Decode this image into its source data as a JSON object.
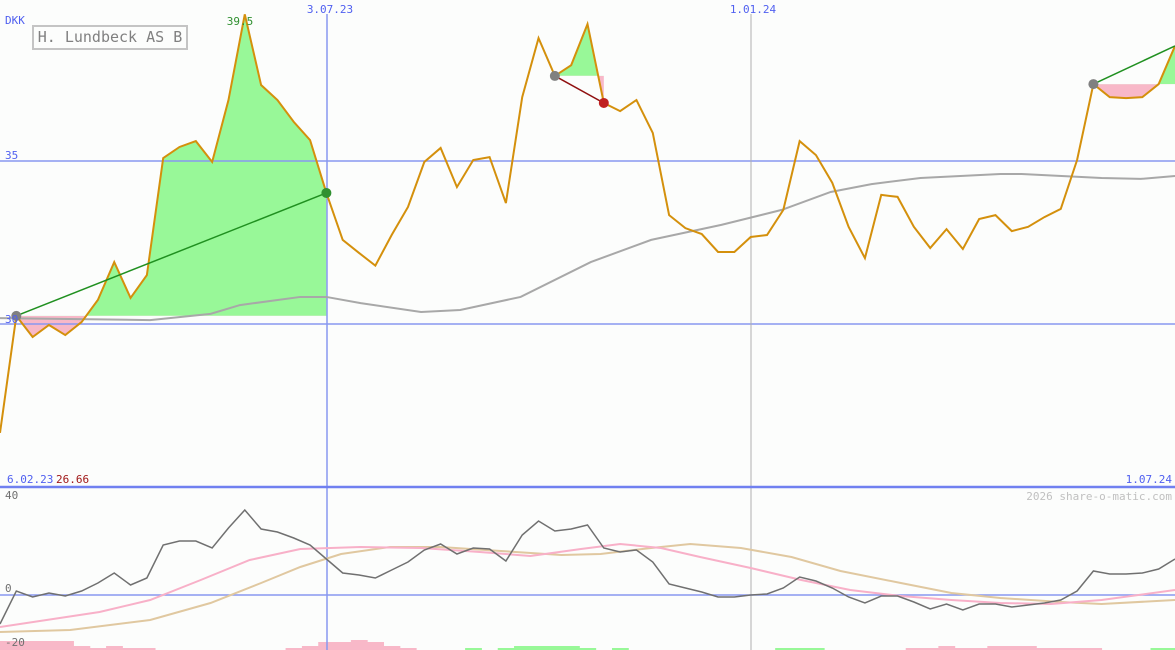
{
  "title": "H. Lundbeck AS B",
  "currency": "DKK",
  "watermark": "2026 share-o-matic.com",
  "colors": {
    "price": "#d4900c",
    "grid": "#8898f0",
    "ma": "#a8a8a8",
    "gain": "#98f898",
    "loss": "#f8b8c8",
    "buy_line": "#209020",
    "sell_line": "#901010",
    "osc": "#707070",
    "osc_pink": "#f8b0c8",
    "osc_tan": "#e0c8a0"
  },
  "chart_data": [
    {
      "type": "line",
      "title": "H. Lundbeck AS B",
      "ylabel": "DKK",
      "x_interval": "weekly",
      "x_ticks": [
        "6.02.23",
        "3.07.23",
        "1.01.24",
        "1.07.24"
      ],
      "y_ticks": [
        "30",
        "35"
      ],
      "ylim": [
        25.5,
        40
      ],
      "max_label": "39.5",
      "min_label": "26.66",
      "price": [
        26.66,
        30.25,
        29.6,
        29.97,
        29.66,
        30.06,
        30.74,
        31.9,
        30.8,
        31.5,
        35.09,
        35.43,
        35.61,
        34.97,
        36.87,
        39.5,
        37.33,
        36.87,
        36.2,
        35.64,
        34.02,
        32.58,
        32.18,
        31.79,
        32.73,
        33.59,
        34.97,
        35.4,
        34.2,
        35.03,
        35.12,
        33.71,
        36.96,
        38.77,
        37.61,
        37.94,
        39.2,
        36.78,
        36.53,
        36.87,
        35.86,
        33.34,
        32.94,
        32.76,
        32.21,
        32.21,
        32.67,
        32.73,
        33.5,
        35.61,
        35.18,
        34.33,
        32.98,
        32.02,
        33.96,
        33.9,
        32.98,
        32.33,
        32.91,
        32.3,
        33.22,
        33.34,
        32.85,
        32.98,
        33.28,
        33.53,
        35.03,
        37.36,
        36.96,
        36.93,
        36.96,
        37.36,
        38.53
      ],
      "moving_average": [
        [
          0,
          30.18
        ],
        [
          9.2,
          30.12
        ],
        [
          12.9,
          30.31
        ],
        [
          14.7,
          30.58
        ],
        [
          18.4,
          30.83
        ],
        [
          20,
          30.83
        ],
        [
          22.1,
          30.64
        ],
        [
          25.8,
          30.37
        ],
        [
          28.2,
          30.43
        ],
        [
          31.9,
          30.83
        ],
        [
          36.2,
          31.9
        ],
        [
          39.9,
          32.58
        ],
        [
          44.2,
          33.04
        ],
        [
          47.9,
          33.5
        ],
        [
          50.9,
          34.05
        ],
        [
          53.4,
          34.29
        ],
        [
          56.4,
          34.48
        ],
        [
          61.3,
          34.6
        ],
        [
          62.6,
          34.6
        ],
        [
          67.5,
          34.48
        ],
        [
          69.9,
          34.45
        ],
        [
          72,
          34.54
        ]
      ],
      "trades": [
        {
          "from": 1,
          "to": 20,
          "result": "gain"
        },
        {
          "from": 34,
          "to": 37,
          "result": "loss"
        },
        {
          "from": 67,
          "to": 72,
          "result": "gain"
        }
      ]
    },
    {
      "type": "line",
      "y_ticks": [
        "40",
        "0",
        "-20"
      ],
      "ylim": [
        -20,
        40
      ],
      "oscillator": [
        -11.6,
        1.6,
        -0.8,
        0.8,
        -0.4,
        1.6,
        4.8,
        8.8,
        4,
        6.8,
        20,
        21.6,
        21.6,
        18.8,
        26.8,
        34,
        26.4,
        25.2,
        22.8,
        20,
        14.4,
        8.8,
        8,
        6.8,
        10,
        13.2,
        18,
        20.4,
        16.4,
        18.8,
        18.4,
        13.6,
        24,
        29.6,
        25.6,
        26.4,
        28,
        18.8,
        17.2,
        18,
        13.2,
        4.4,
        2.8,
        1.2,
        -0.8,
        -0.8,
        0,
        0.4,
        2.8,
        7.2,
        5.6,
        2.8,
        -0.8,
        -3.2,
        -0.4,
        -0.4,
        -2.8,
        -5.6,
        -3.6,
        -6,
        -3.6,
        -3.6,
        -4.8,
        -4,
        -3.2,
        -2,
        1.6,
        9.6,
        8.4,
        8.4,
        8.8,
        10.4,
        14.4
      ],
      "signal_pink": [
        [
          0,
          -12.8
        ],
        [
          6.1,
          -6.8
        ],
        [
          9.2,
          -2
        ],
        [
          12.3,
          6
        ],
        [
          15.3,
          14
        ],
        [
          18.4,
          18.4
        ],
        [
          22.1,
          19.2
        ],
        [
          25.8,
          18.8
        ],
        [
          29.4,
          17.2
        ],
        [
          32.5,
          15.6
        ],
        [
          35.6,
          18.4
        ],
        [
          38,
          20.4
        ],
        [
          40.5,
          18.8
        ],
        [
          42.9,
          15.2
        ],
        [
          46,
          10.8
        ],
        [
          49.1,
          6
        ],
        [
          52.1,
          2
        ],
        [
          55.2,
          -0.4
        ],
        [
          58.3,
          -2
        ],
        [
          61.3,
          -3.2
        ],
        [
          64.4,
          -3.6
        ],
        [
          67.5,
          -2
        ],
        [
          72,
          2
        ]
      ],
      "signal_tan": [
        [
          0,
          -14.8
        ],
        [
          4.3,
          -14
        ],
        [
          9.2,
          -10
        ],
        [
          12.9,
          -3.2
        ],
        [
          16,
          4.8
        ],
        [
          18.4,
          11.2
        ],
        [
          20.9,
          16.4
        ],
        [
          23.9,
          19.2
        ],
        [
          27,
          19.2
        ],
        [
          30.7,
          17.6
        ],
        [
          34.4,
          16
        ],
        [
          36.8,
          16.4
        ],
        [
          39.9,
          18.8
        ],
        [
          42.3,
          20.4
        ],
        [
          45.4,
          18.8
        ],
        [
          48.5,
          15.2
        ],
        [
          51.5,
          9.6
        ],
        [
          55.2,
          4.8
        ],
        [
          58.3,
          0.8
        ],
        [
          61.3,
          -1.2
        ],
        [
          65,
          -2.8
        ],
        [
          67.5,
          -3.6
        ],
        [
          72,
          -2
        ]
      ],
      "histogram": [
        -3.6,
        -3.6,
        -3.6,
        -3.6,
        -3.6,
        -1.6,
        -0.8,
        -1.6,
        -0.8,
        -0.8,
        0,
        0,
        0,
        0,
        0,
        0,
        0,
        0,
        -0.8,
        -1.6,
        -3.2,
        -3.2,
        -4,
        -3.2,
        -1.6,
        -0.8,
        0,
        0,
        0,
        0.8,
        0,
        0.8,
        1.6,
        1.6,
        1.6,
        1.6,
        0.8,
        0,
        0.8,
        0,
        0,
        0,
        0,
        0,
        0,
        0,
        0,
        0,
        0.8,
        0.8,
        0.8,
        0,
        0,
        0,
        0,
        0,
        -0.8,
        -0.8,
        -1.6,
        -0.8,
        -0.8,
        -1.6,
        -1.6,
        -1.6,
        -0.8,
        -0.8,
        -0.8,
        -0.8,
        0,
        0,
        0,
        0.8,
        0.8
      ]
    }
  ]
}
